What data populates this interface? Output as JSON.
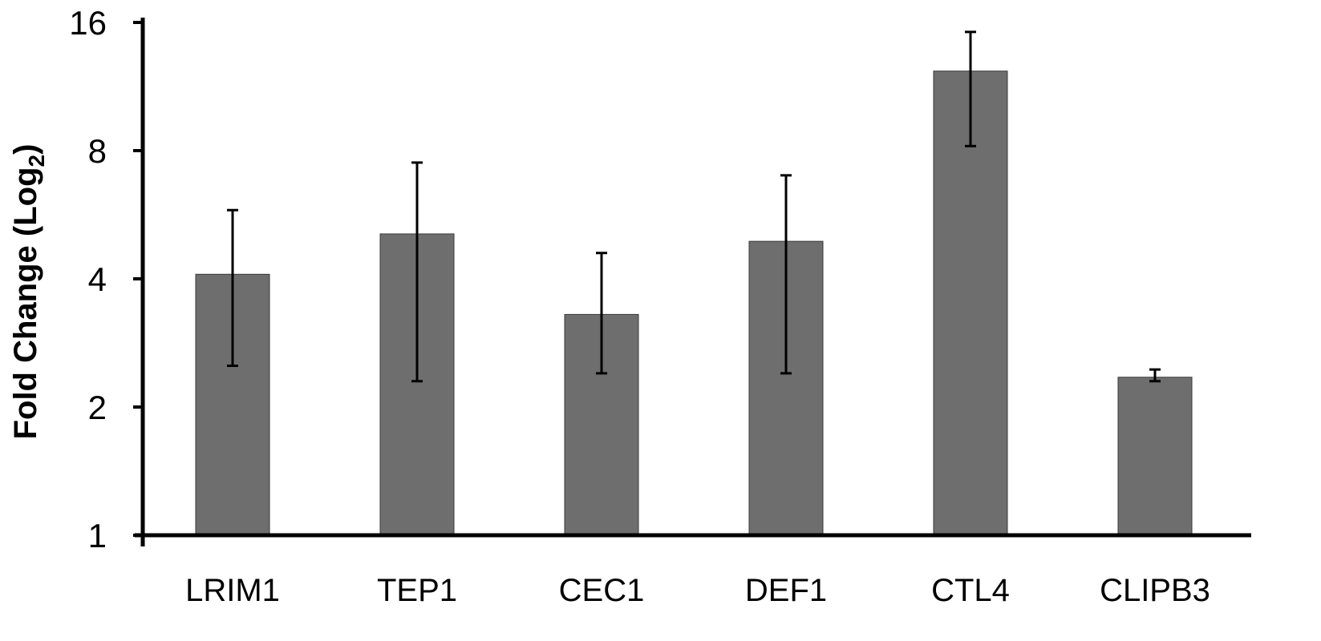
{
  "chart_data": {
    "type": "bar",
    "title": "",
    "xlabel": "",
    "ylabel": "Fold Change (Log",
    "ylabel_subscript": "2",
    "ylabel_suffix": ")",
    "yscale": "log2",
    "ylim": [
      1,
      16
    ],
    "yticks": [
      1,
      2,
      4,
      8,
      16
    ],
    "ytick_labels": [
      "1",
      "2",
      "4",
      "8",
      "16"
    ],
    "categories": [
      "LRIM1",
      "TEP1",
      "CEC1",
      "DEF1",
      "CTL4",
      "CLIPB3"
    ],
    "values": [
      4.1,
      5.1,
      3.3,
      4.9,
      12.3,
      2.35
    ],
    "error_low": [
      2.5,
      2.3,
      2.4,
      2.4,
      8.2,
      2.3
    ],
    "error_high": [
      5.8,
      7.5,
      4.6,
      7.0,
      15.2,
      2.45
    ],
    "grid": false,
    "colors": {
      "bar": "#6e6e6e",
      "bar_stroke": "#3a3a3a",
      "axis": "#000000",
      "error": "#000000"
    }
  }
}
